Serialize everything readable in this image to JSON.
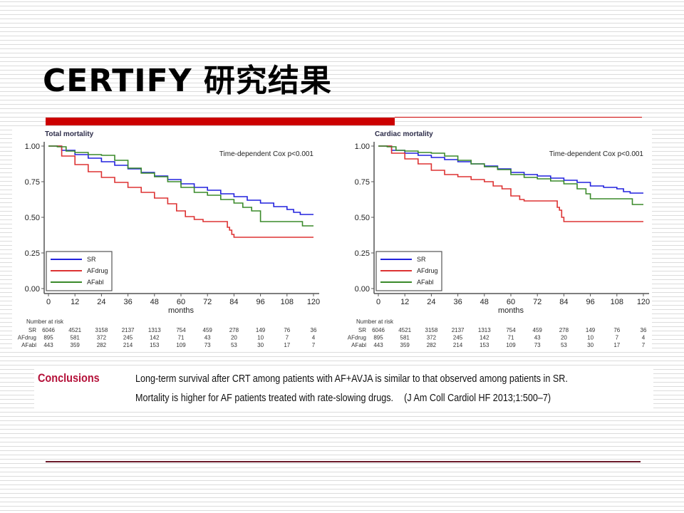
{
  "slide": {
    "title": "CERTIFY 研究结果",
    "accent_color": "#cc0000"
  },
  "conclusions": {
    "label": "Conclusions",
    "line1": "Long-term survival after CRT among patients with AF+AVJA is similar to that observed among patients in SR.",
    "line2": "Mortality is higher for AF patients treated with rate-slowing drugs.",
    "citation": "(J Am Coll Cardiol HF 2013;1:500–7)"
  },
  "chart_data": [
    {
      "type": "line",
      "title": "Total mortality",
      "annotation": "Time-dependent Cox p<0.001",
      "xlabel": "months",
      "ylabel": "",
      "xlim": [
        0,
        120
      ],
      "ylim": [
        0,
        1
      ],
      "x_ticks": [
        "0",
        "12",
        "24",
        "36",
        "48",
        "60",
        "72",
        "84",
        "96",
        "108",
        "120"
      ],
      "y_ticks": [
        "0.00",
        "0.25",
        "0.50",
        "0.75",
        "1.00"
      ],
      "legend": {
        "position": "bottom-left",
        "entries": [
          "SR",
          "AFdrug",
          "AFabl"
        ]
      },
      "series": [
        {
          "name": "SR",
          "color": "#2222dd",
          "points": [
            [
              0,
              1.0
            ],
            [
              6,
              0.97
            ],
            [
              12,
              0.94
            ],
            [
              18,
              0.915
            ],
            [
              24,
              0.89
            ],
            [
              30,
              0.865
            ],
            [
              36,
              0.84
            ],
            [
              42,
              0.815
            ],
            [
              48,
              0.79
            ],
            [
              54,
              0.765
            ],
            [
              60,
              0.735
            ],
            [
              66,
              0.71
            ],
            [
              72,
              0.69
            ],
            [
              78,
              0.665
            ],
            [
              84,
              0.645
            ],
            [
              90,
              0.62
            ],
            [
              96,
              0.6
            ],
            [
              102,
              0.575
            ],
            [
              108,
              0.555
            ],
            [
              111,
              0.535
            ],
            [
              114,
              0.52
            ],
            [
              120,
              0.52
            ]
          ]
        },
        {
          "name": "AFdrug",
          "color": "#dd3333",
          "points": [
            [
              0,
              1.0
            ],
            [
              6,
              0.93
            ],
            [
              12,
              0.87
            ],
            [
              18,
              0.82
            ],
            [
              24,
              0.78
            ],
            [
              30,
              0.745
            ],
            [
              36,
              0.71
            ],
            [
              42,
              0.675
            ],
            [
              48,
              0.635
            ],
            [
              54,
              0.595
            ],
            [
              58,
              0.545
            ],
            [
              62,
              0.505
            ],
            [
              66,
              0.485
            ],
            [
              70,
              0.47
            ],
            [
              80,
              0.47
            ],
            [
              81,
              0.43
            ],
            [
              82,
              0.41
            ],
            [
              83,
              0.38
            ],
            [
              84,
              0.36
            ],
            [
              120,
              0.36
            ]
          ]
        },
        {
          "name": "AFabl",
          "color": "#3a8a2a",
          "points": [
            [
              0,
              1.0
            ],
            [
              4,
              0.995
            ],
            [
              8,
              0.965
            ],
            [
              12,
              0.955
            ],
            [
              18,
              0.94
            ],
            [
              24,
              0.935
            ],
            [
              30,
              0.9
            ],
            [
              36,
              0.845
            ],
            [
              42,
              0.81
            ],
            [
              48,
              0.785
            ],
            [
              54,
              0.75
            ],
            [
              60,
              0.71
            ],
            [
              66,
              0.675
            ],
            [
              72,
              0.655
            ],
            [
              78,
              0.625
            ],
            [
              84,
              0.6
            ],
            [
              88,
              0.57
            ],
            [
              92,
              0.545
            ],
            [
              96,
              0.47
            ],
            [
              114,
              0.47
            ],
            [
              115,
              0.44
            ],
            [
              120,
              0.44
            ]
          ]
        }
      ],
      "number_at_risk": {
        "label": "Number at risk",
        "times": [
          0,
          12,
          24,
          36,
          48,
          60,
          72,
          84,
          96,
          108,
          120
        ],
        "rows": [
          {
            "name": "SR",
            "values": [
              "6046",
              "4521",
              "3158",
              "2137",
              "1313",
              "754",
              "459",
              "278",
              "149",
              "76",
              "36"
            ]
          },
          {
            "name": "AFdrug",
            "values": [
              "895",
              "581",
              "372",
              "245",
              "142",
              "71",
              "43",
              "20",
              "10",
              "7",
              "4"
            ]
          },
          {
            "name": "AFabl",
            "values": [
              "443",
              "359",
              "282",
              "214",
              "153",
              "109",
              "73",
              "53",
              "30",
              "17",
              "7"
            ]
          }
        ]
      }
    },
    {
      "type": "line",
      "title": "Cardiac mortality",
      "annotation": "Time-dependent Cox p<0.001",
      "xlabel": "months",
      "ylabel": "",
      "xlim": [
        0,
        120
      ],
      "ylim": [
        0,
        1
      ],
      "x_ticks": [
        "0",
        "12",
        "24",
        "36",
        "48",
        "60",
        "72",
        "84",
        "96",
        "108",
        "120"
      ],
      "y_ticks": [
        "0.00",
        "0.25",
        "0.50",
        "0.75",
        "1.00"
      ],
      "legend": {
        "position": "bottom-left",
        "entries": [
          "SR",
          "AFdrug",
          "AFabl"
        ]
      },
      "series": [
        {
          "name": "SR",
          "color": "#2222dd",
          "points": [
            [
              0,
              1.0
            ],
            [
              6,
              0.97
            ],
            [
              12,
              0.95
            ],
            [
              18,
              0.935
            ],
            [
              24,
              0.92
            ],
            [
              30,
              0.905
            ],
            [
              36,
              0.89
            ],
            [
              42,
              0.875
            ],
            [
              48,
              0.86
            ],
            [
              54,
              0.84
            ],
            [
              60,
              0.815
            ],
            [
              66,
              0.8
            ],
            [
              72,
              0.79
            ],
            [
              78,
              0.775
            ],
            [
              84,
              0.76
            ],
            [
              90,
              0.745
            ],
            [
              96,
              0.72
            ],
            [
              102,
              0.71
            ],
            [
              108,
              0.7
            ],
            [
              111,
              0.68
            ],
            [
              114,
              0.67
            ],
            [
              120,
              0.67
            ]
          ]
        },
        {
          "name": "AFdrug",
          "color": "#dd3333",
          "points": [
            [
              0,
              1.0
            ],
            [
              6,
              0.95
            ],
            [
              12,
              0.91
            ],
            [
              18,
              0.875
            ],
            [
              24,
              0.83
            ],
            [
              30,
              0.8
            ],
            [
              36,
              0.785
            ],
            [
              42,
              0.765
            ],
            [
              48,
              0.75
            ],
            [
              52,
              0.72
            ],
            [
              56,
              0.7
            ],
            [
              60,
              0.65
            ],
            [
              64,
              0.625
            ],
            [
              66,
              0.615
            ],
            [
              80,
              0.615
            ],
            [
              81,
              0.57
            ],
            [
              82,
              0.55
            ],
            [
              83,
              0.5
            ],
            [
              84,
              0.47
            ],
            [
              120,
              0.47
            ]
          ]
        },
        {
          "name": "AFabl",
          "color": "#3a8a2a",
          "points": [
            [
              0,
              1.0
            ],
            [
              4,
              0.995
            ],
            [
              8,
              0.97
            ],
            [
              12,
              0.965
            ],
            [
              18,
              0.955
            ],
            [
              24,
              0.95
            ],
            [
              30,
              0.93
            ],
            [
              36,
              0.9
            ],
            [
              42,
              0.875
            ],
            [
              48,
              0.855
            ],
            [
              54,
              0.835
            ],
            [
              60,
              0.8
            ],
            [
              66,
              0.78
            ],
            [
              72,
              0.77
            ],
            [
              78,
              0.755
            ],
            [
              84,
              0.735
            ],
            [
              90,
              0.7
            ],
            [
              94,
              0.665
            ],
            [
              96,
              0.63
            ],
            [
              114,
              0.63
            ],
            [
              115,
              0.59
            ],
            [
              120,
              0.59
            ]
          ]
        }
      ],
      "number_at_risk": {
        "label": "Number at risk",
        "times": [
          0,
          12,
          24,
          36,
          48,
          60,
          72,
          84,
          96,
          108,
          120
        ],
        "rows": [
          {
            "name": "SR",
            "values": [
              "6046",
              "4521",
              "3158",
              "2137",
              "1313",
              "754",
              "459",
              "278",
              "149",
              "76",
              "36"
            ]
          },
          {
            "name": "AFdrug",
            "values": [
              "895",
              "581",
              "372",
              "245",
              "142",
              "71",
              "43",
              "20",
              "10",
              "7",
              "4"
            ]
          },
          {
            "name": "AFabl",
            "values": [
              "443",
              "359",
              "282",
              "214",
              "153",
              "109",
              "73",
              "53",
              "30",
              "17",
              "7"
            ]
          }
        ]
      }
    }
  ]
}
